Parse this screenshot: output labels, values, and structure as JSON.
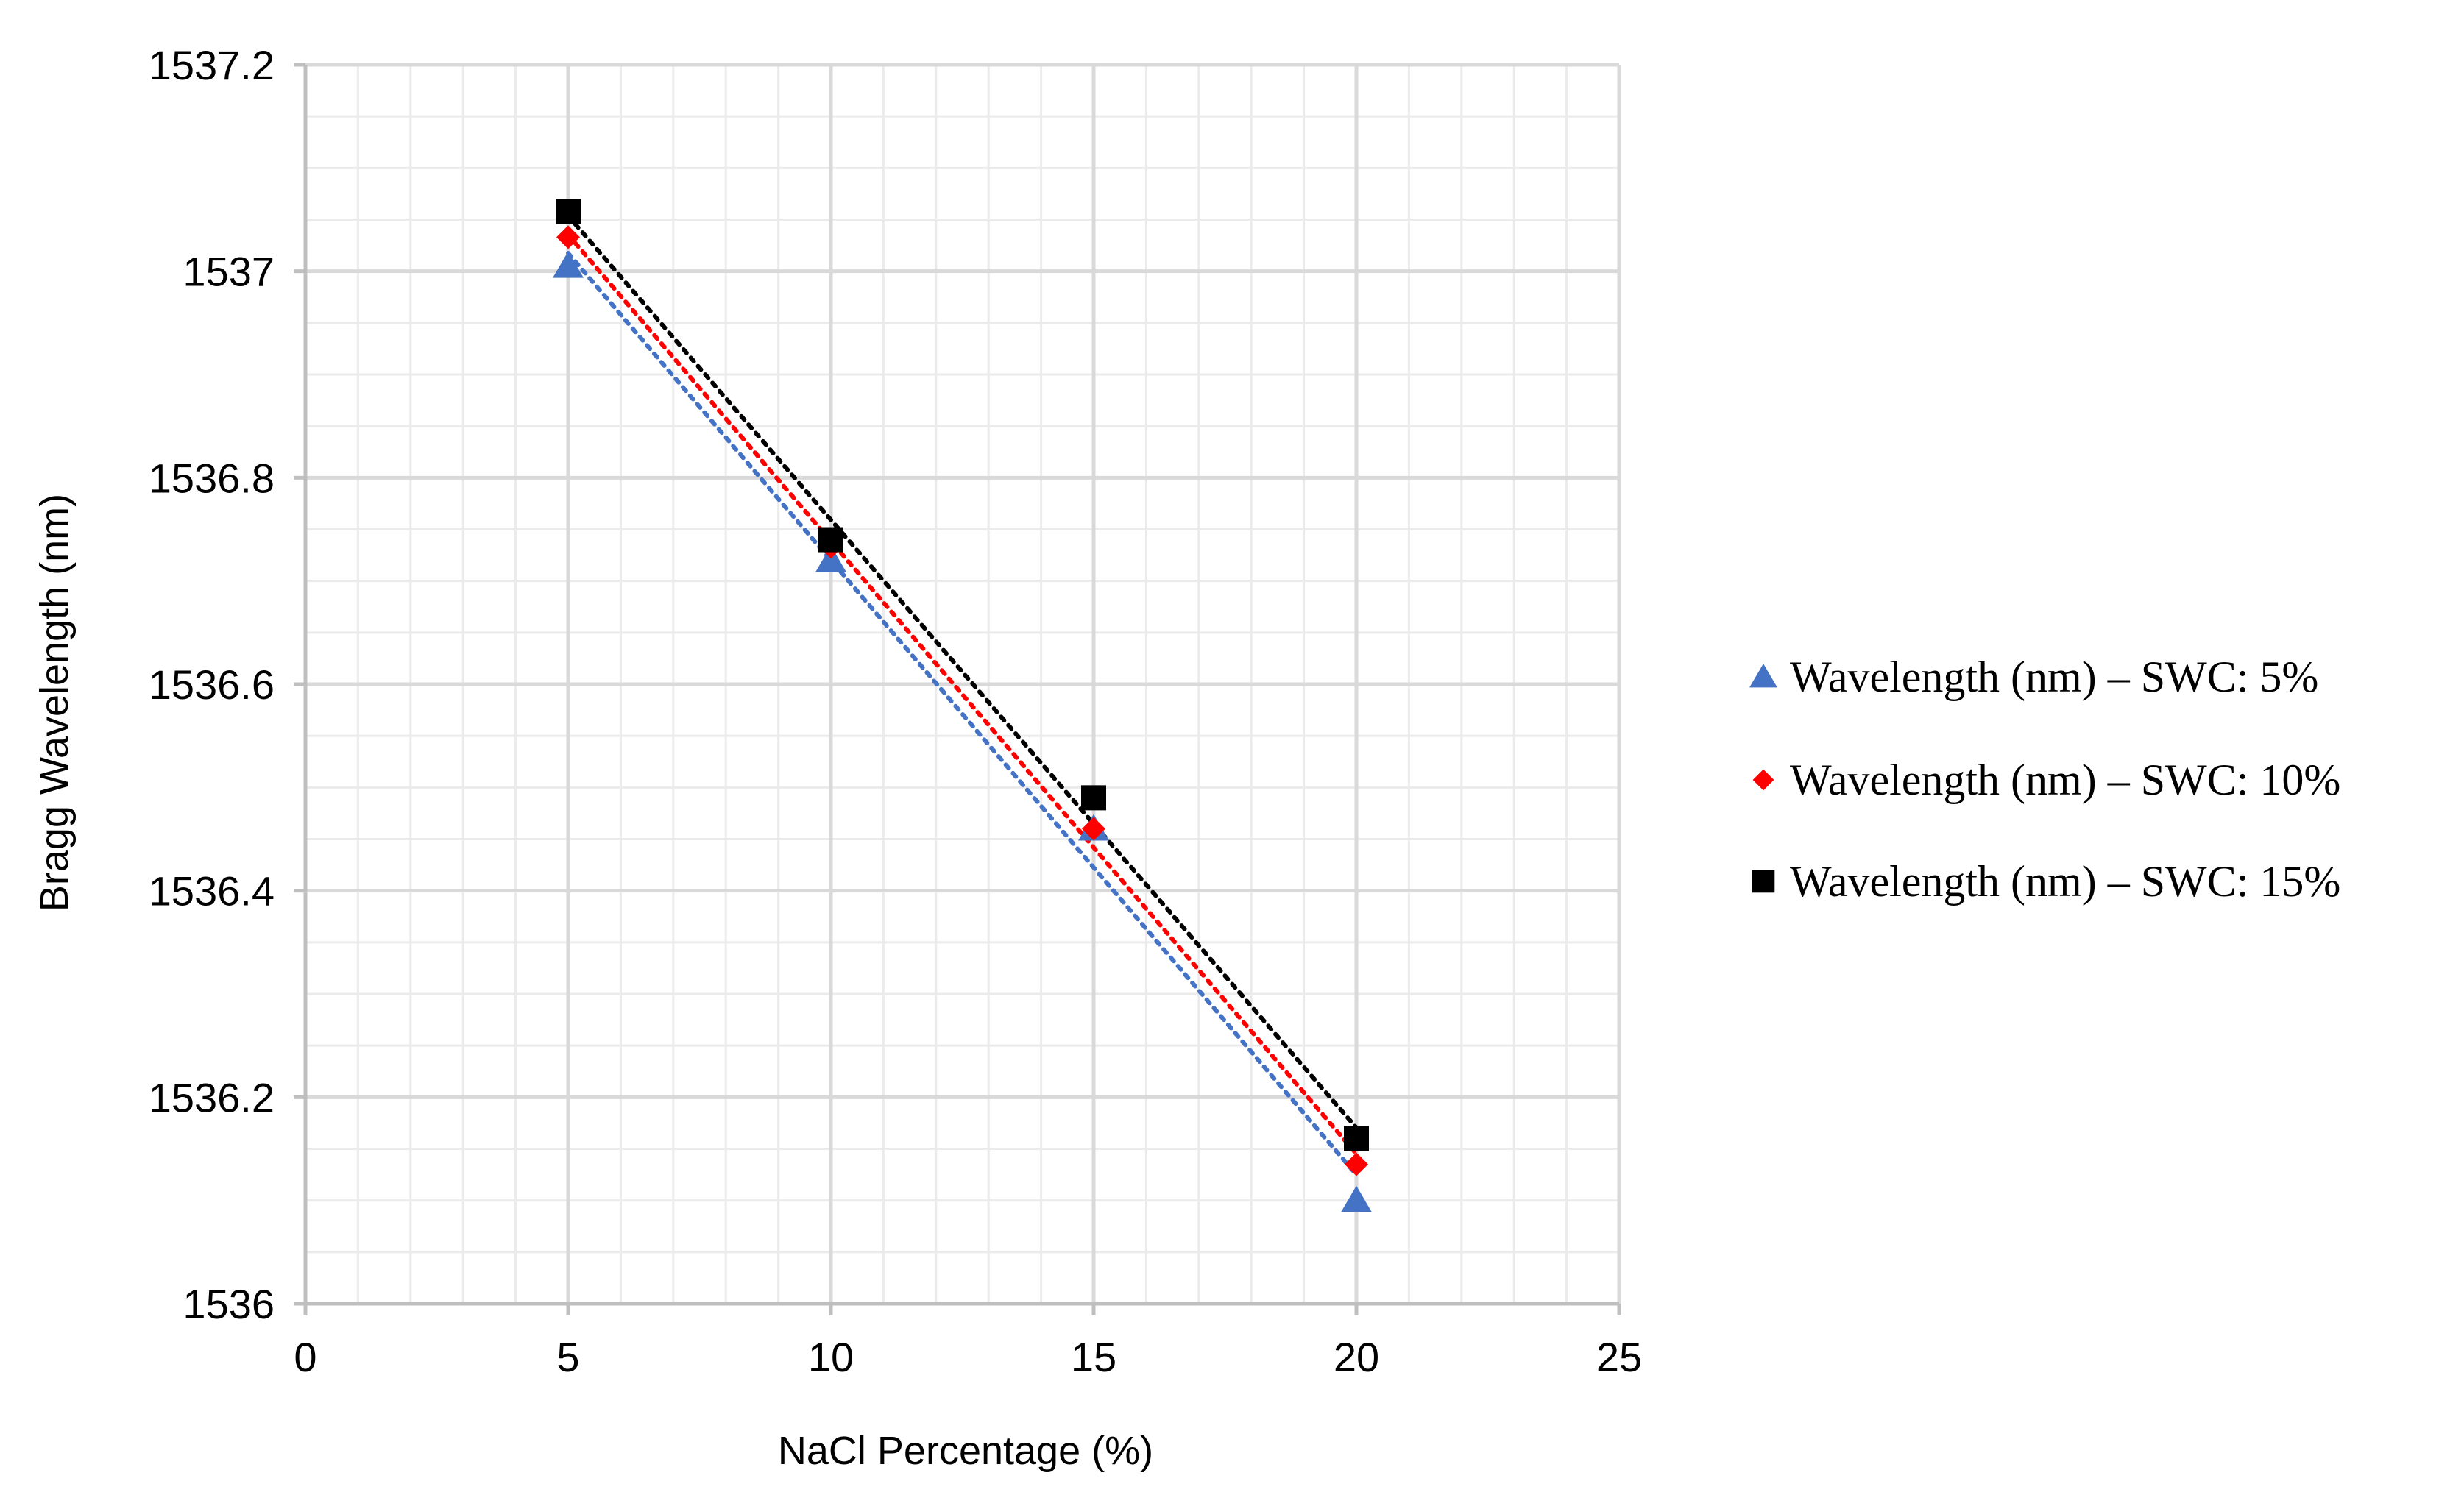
{
  "chart_data": {
    "type": "scatter",
    "title": "",
    "xlabel": "NaCl Percentage (%)",
    "ylabel": "Bragg Wavelength (nm)",
    "xlim": [
      0,
      25
    ],
    "ylim": [
      1536,
      1537.2
    ],
    "x_ticks": [
      "0",
      "5",
      "10",
      "15",
      "20",
      "25"
    ],
    "y_ticks": [
      "1536",
      "1536.2",
      "1536.4",
      "1536.6",
      "1536.8",
      "1537",
      "1537.2"
    ],
    "grid": true,
    "legend_position": "right",
    "series": [
      {
        "name": "Wavelength (nm) – SWC: 5%",
        "marker": "triangle",
        "color": "#4472c4",
        "trendline": "linear-dotted",
        "x": [
          5,
          10,
          15,
          20
        ],
        "y": [
          1537.005,
          1536.72,
          1536.46,
          1536.1
        ]
      },
      {
        "name": "Wavelength (nm) – SWC: 10%",
        "marker": "diamond",
        "color": "#ff0000",
        "trendline": "linear-dotted",
        "x": [
          5,
          10,
          15,
          20
        ],
        "y": [
          1537.033,
          1536.733,
          1536.46,
          1536.135
        ]
      },
      {
        "name": "Wavelength (nm) – SWC: 15%",
        "marker": "square",
        "color": "#000000",
        "trendline": "linear-dotted",
        "x": [
          5,
          10,
          15,
          20
        ],
        "y": [
          1537.058,
          1536.74,
          1536.49,
          1536.16
        ]
      }
    ]
  }
}
